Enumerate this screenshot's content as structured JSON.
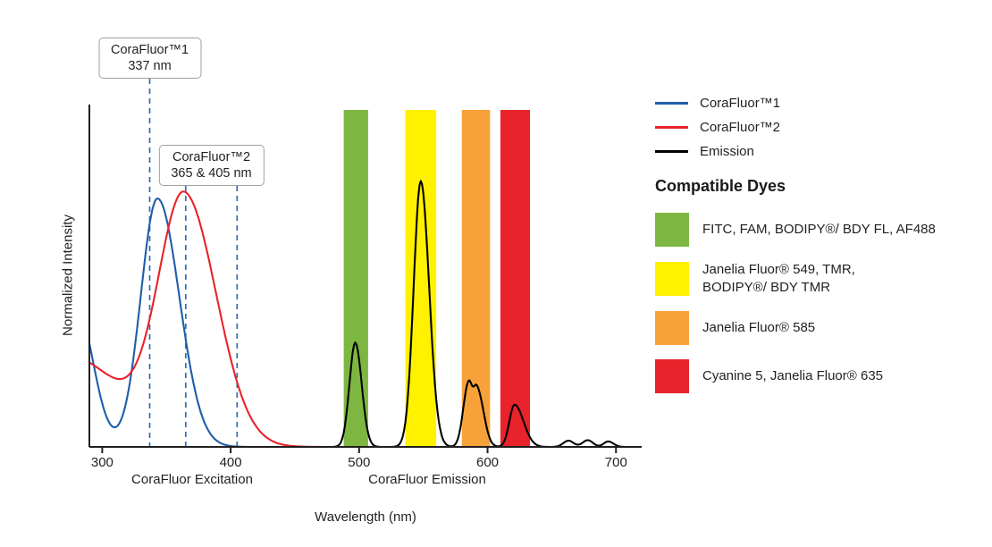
{
  "chart_data": {
    "type": "line",
    "xlabel": "Wavelength (nm)",
    "ylabel": "Normalized Intensity",
    "x_range_nm": [
      290,
      720
    ],
    "x_ticks": [
      300,
      400,
      500,
      600,
      700
    ],
    "x_axis_group_labels": [
      {
        "text": "CoraFluor Excitation",
        "center_nm": 370
      },
      {
        "text": "CoraFluor Emission",
        "center_nm": 553
      }
    ],
    "callouts": [
      {
        "title": "CoraFluor™1",
        "subtitle": "337 nm",
        "lines_nm": [
          337
        ]
      },
      {
        "title": "CoraFluor™2",
        "subtitle": "365 & 405 nm",
        "lines_nm": [
          365,
          405
        ]
      }
    ],
    "marker_line_color": "#2E6DB4",
    "series": [
      {
        "name": "CoraFluor™1",
        "role": "excitation-corafluor1",
        "color": "#1E5EA9",
        "range_nm": [
          290,
          432
        ],
        "peaks": [
          {
            "center_nm": 343,
            "rel_height": 1.0,
            "sigma_left_nm": 13,
            "sigma_right_nm": 17
          },
          {
            "center_nm": 280,
            "rel_height": 0.56,
            "sigma_left_nm": 25,
            "sigma_right_nm": 13
          }
        ]
      },
      {
        "name": "CoraFluor™2",
        "role": "excitation-corafluor2",
        "color": "#E8232B",
        "range_nm": [
          290,
          470
        ],
        "peaks": [
          {
            "center_nm": 364,
            "rel_height": 0.99,
            "sigma_left_nm": 20,
            "sigma_right_nm": 25
          },
          {
            "center_nm": 272,
            "rel_height": 0.37,
            "sigma_left_nm": 30,
            "sigma_right_nm": 43
          }
        ]
      },
      {
        "name": "Emission",
        "role": "emission",
        "color": "#000000",
        "range_nm": [
          455,
          718
        ],
        "peaks": [
          {
            "center_nm": 497,
            "rel_height": 0.42,
            "sigma_left_nm": 4.5,
            "sigma_right_nm": 5
          },
          {
            "center_nm": 548,
            "rel_height": 1.07,
            "sigma_left_nm": 5.5,
            "sigma_right_nm": 6.5
          },
          {
            "center_nm": 585,
            "rel_height": 0.25,
            "sigma_left_nm": 4,
            "sigma_right_nm": 3
          },
          {
            "center_nm": 592,
            "rel_height": 0.23,
            "sigma_left_nm": 3,
            "sigma_right_nm": 5
          },
          {
            "center_nm": 621,
            "rel_height": 0.17,
            "sigma_left_nm": 4,
            "sigma_right_nm": 7
          },
          {
            "center_nm": 663,
            "rel_height": 0.025,
            "sigma_left_nm": 4,
            "sigma_right_nm": 4
          },
          {
            "center_nm": 678,
            "rel_height": 0.027,
            "sigma_left_nm": 4,
            "sigma_right_nm": 4
          },
          {
            "center_nm": 694,
            "rel_height": 0.022,
            "sigma_left_nm": 3.5,
            "sigma_right_nm": 4
          }
        ]
      }
    ],
    "filter_bands": [
      {
        "name": "green",
        "color": "#7DB742",
        "from_nm": 488,
        "to_nm": 507,
        "dyes": "FITC, FAM, BODIPY®/ BDY FL, AF488"
      },
      {
        "name": "yellow",
        "color": "#FFF100",
        "from_nm": 536,
        "to_nm": 560,
        "dyes": "Janelia Fluor® 549, TMR, BODIPY®/ BDY TMR"
      },
      {
        "name": "orange",
        "color": "#F7A238",
        "from_nm": 580,
        "to_nm": 602,
        "dyes": "Janelia Fluor® 585"
      },
      {
        "name": "red",
        "color": "#E8232B",
        "from_nm": 610,
        "to_nm": 633,
        "dyes": "Cyanine 5, Janelia Fluor® 635"
      }
    ]
  },
  "legend": {
    "items": [
      {
        "label": "CoraFluor™1",
        "color": "#1E5EA9"
      },
      {
        "label": "CoraFluor™2",
        "color": "#E8232B"
      },
      {
        "label": "Emission",
        "color": "#000000"
      }
    ]
  },
  "dyes": {
    "heading": "Compatible Dyes",
    "items": [
      {
        "color": "#7DB742",
        "lines": [
          "FITC, FAM, BODIPY®/ BDY FL, AF488"
        ]
      },
      {
        "color": "#FFF100",
        "lines": [
          "Janelia Fluor® 549, TMR,",
          "BODIPY®/ BDY TMR"
        ]
      },
      {
        "color": "#F7A238",
        "lines": [
          "Janelia Fluor® 585"
        ]
      },
      {
        "color": "#E8232B",
        "lines": [
          "Cyanine 5, Janelia Fluor® 635"
        ]
      }
    ]
  }
}
